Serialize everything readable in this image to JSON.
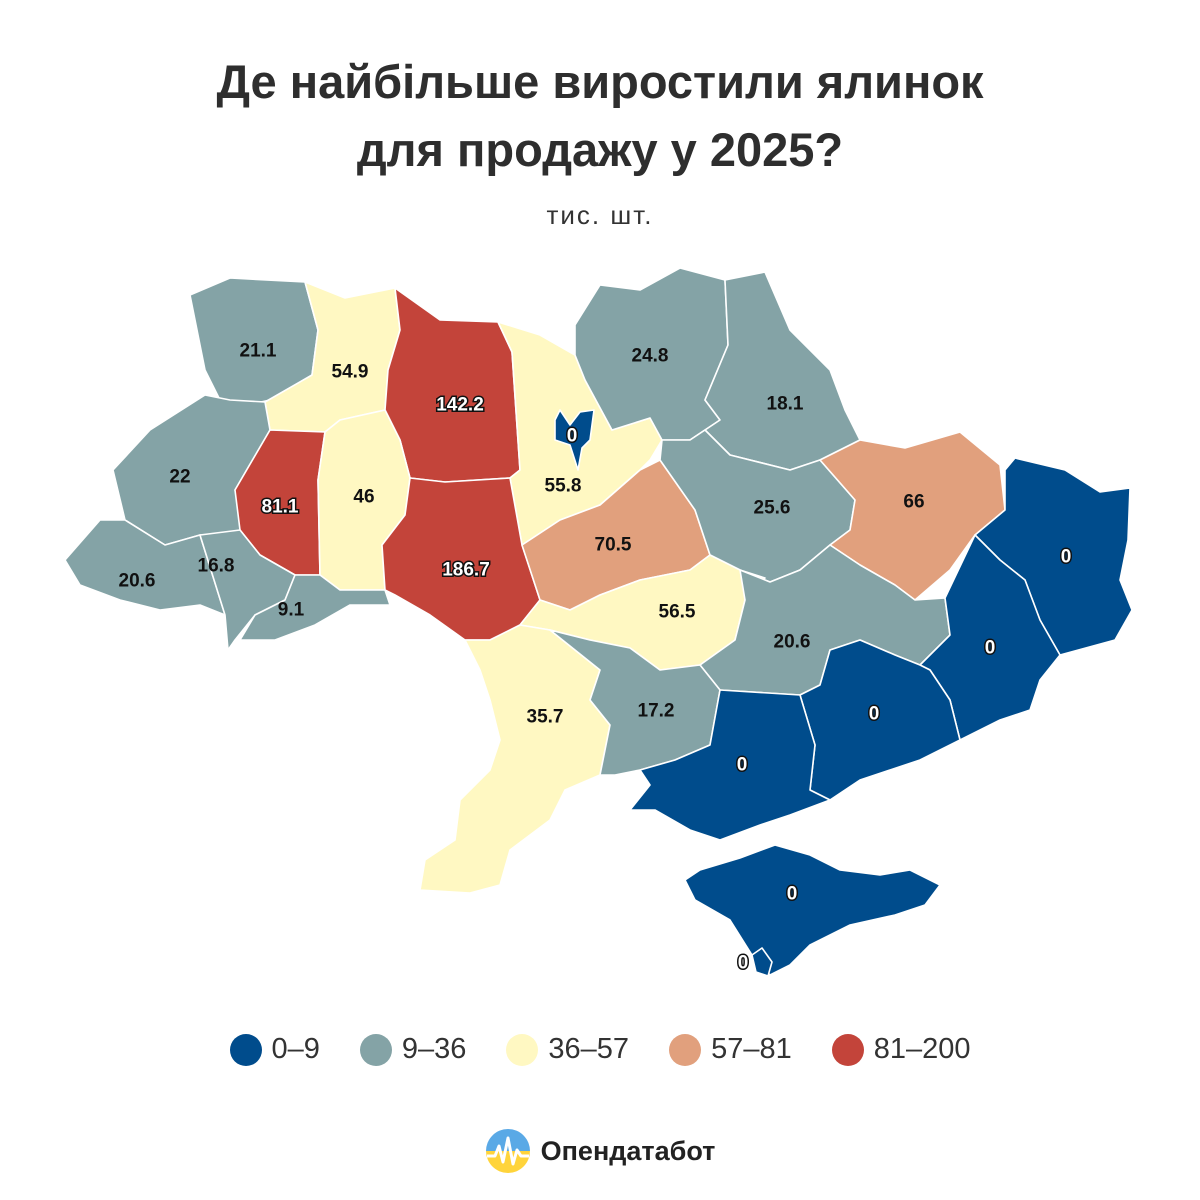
{
  "title_line1": "Де найбільше виростили ялинок",
  "title_line2": "для продажу у 2025?",
  "subtitle": "тис. шт.",
  "colors": {
    "bin0": "#004c8c",
    "bin1": "#84a3a6",
    "bin2": "#fff8c2",
    "bin3": "#e1a07d",
    "bin4": "#c3443a"
  },
  "legend": [
    {
      "label": "0–9",
      "color": "#004c8c"
    },
    {
      "label": "9–36",
      "color": "#84a3a6"
    },
    {
      "label": "36–57",
      "color": "#fff8c2"
    },
    {
      "label": "57–81",
      "color": "#e1a07d"
    },
    {
      "label": "81–200",
      "color": "#c3443a"
    }
  ],
  "regions": [
    {
      "id": "volyn",
      "value": "21.1",
      "bin": 1
    },
    {
      "id": "rivne",
      "value": "54.9",
      "bin": 2
    },
    {
      "id": "zhytomyr",
      "value": "142.2",
      "bin": 4
    },
    {
      "id": "kyiv-oblast",
      "value": "55.8",
      "bin": 2
    },
    {
      "id": "kyiv-city",
      "value": "0",
      "bin": 0
    },
    {
      "id": "chernihiv",
      "value": "24.8",
      "bin": 1
    },
    {
      "id": "sumy",
      "value": "18.1",
      "bin": 1
    },
    {
      "id": "lviv",
      "value": "22",
      "bin": 1
    },
    {
      "id": "ternopil",
      "value": "81.1",
      "bin": 4
    },
    {
      "id": "khmelnytskyi",
      "value": "46",
      "bin": 2
    },
    {
      "id": "vinnytsia",
      "value": "186.7",
      "bin": 4
    },
    {
      "id": "cherkasy",
      "value": "70.5",
      "bin": 3
    },
    {
      "id": "poltava",
      "value": "25.6",
      "bin": 1
    },
    {
      "id": "kharkiv",
      "value": "66",
      "bin": 3
    },
    {
      "id": "luhansk",
      "value": "0",
      "bin": 0
    },
    {
      "id": "zakarpattia",
      "value": "20.6",
      "bin": 1
    },
    {
      "id": "ivano-frankivsk",
      "value": "16.8",
      "bin": 1
    },
    {
      "id": "chernivtsi",
      "value": "9.1",
      "bin": 1
    },
    {
      "id": "kirovohrad",
      "value": "56.5",
      "bin": 2
    },
    {
      "id": "dnipropetrovsk",
      "value": "20.6",
      "bin": 1
    },
    {
      "id": "donetsk",
      "value": "0",
      "bin": 0
    },
    {
      "id": "odesa",
      "value": "35.7",
      "bin": 2
    },
    {
      "id": "mykolaiv",
      "value": "17.2",
      "bin": 1
    },
    {
      "id": "zaporizhzhia",
      "value": "0",
      "bin": 0
    },
    {
      "id": "kherson",
      "value": "0",
      "bin": 0
    },
    {
      "id": "crimea",
      "value": "0",
      "bin": 0
    },
    {
      "id": "sevastopol",
      "value": "0",
      "bin": 0
    }
  ],
  "brand": {
    "name": "Опендатабот",
    "logo_icon": "opendatabot-logo-icon"
  }
}
